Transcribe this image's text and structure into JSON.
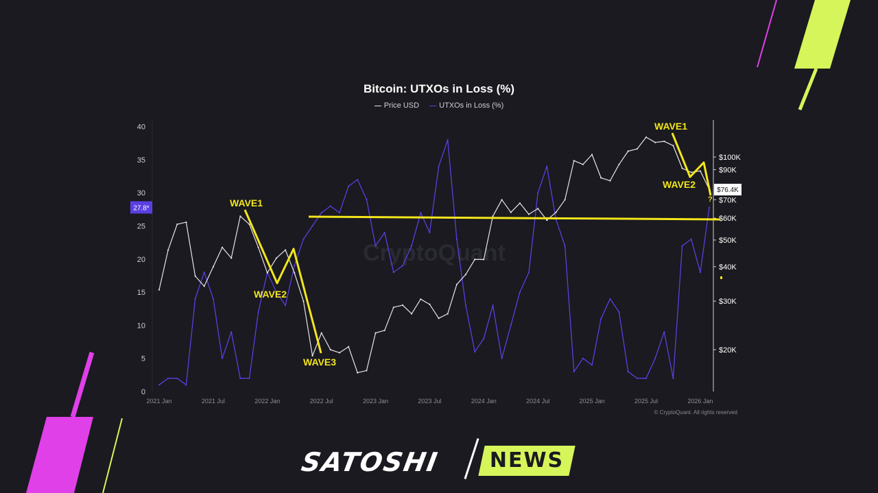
{
  "chart_data": {
    "type": "line",
    "title": "Bitcoin: UTXOs in Loss (%)",
    "legend": [
      "Price USD",
      "UTXOs in Loss (%)"
    ],
    "legend_placement": "top-center",
    "x_ticks": [
      "2021 Jan",
      "2021 Jul",
      "2022 Jan",
      "2022 Jul",
      "2023 Jan",
      "2023 Jul",
      "2024 Jan",
      "2024 Jul",
      "2025 Jan",
      "2025 Jul",
      "2026 Jan"
    ],
    "left_axis": {
      "ticks": [
        0,
        5,
        10,
        15,
        20,
        25,
        30,
        35,
        40
      ],
      "ylim": [
        0,
        41
      ]
    },
    "right_axis": {
      "scale": "log",
      "ticks": [
        "$20K",
        "$30K",
        "$40K",
        "$50K",
        "$60K",
        "$70K",
        "$90K",
        "$100K"
      ],
      "tick_values": [
        20000,
        30000,
        40000,
        50000,
        60000,
        70000,
        90000,
        100000
      ]
    },
    "current_loss_label": "27.8*",
    "current_price_label": "$76.4K",
    "watermark": "CryptoQuant",
    "copyright": "© CryptoQuant. All rights reserved",
    "colors": {
      "price": "#e6e6ea",
      "loss": "#5b3fe0",
      "annotation": "#f4e61b",
      "background": "#1a1a20"
    },
    "series": [
      {
        "name": "Price USD",
        "axis": "right",
        "x": [
          "2021-01",
          "2021-02",
          "2021-03",
          "2021-04",
          "2021-05",
          "2021-06",
          "2021-07",
          "2021-08",
          "2021-09",
          "2021-10",
          "2021-11",
          "2021-12",
          "2022-01",
          "2022-02",
          "2022-03",
          "2022-04",
          "2022-05",
          "2022-06",
          "2022-07",
          "2022-08",
          "2022-09",
          "2022-10",
          "2022-11",
          "2022-12",
          "2023-01",
          "2023-02",
          "2023-03",
          "2023-04",
          "2023-05",
          "2023-06",
          "2023-07",
          "2023-08",
          "2023-09",
          "2023-10",
          "2023-11",
          "2023-12",
          "2024-01",
          "2024-02",
          "2024-03",
          "2024-04",
          "2024-05",
          "2024-06",
          "2024-07",
          "2024-08",
          "2024-09",
          "2024-10",
          "2024-11",
          "2024-12",
          "2025-01",
          "2025-02",
          "2025-03",
          "2025-04",
          "2025-05",
          "2025-06",
          "2025-07",
          "2025-08",
          "2025-09",
          "2025-10",
          "2025-11",
          "2025-12",
          "2026-01",
          "2026-02"
        ],
        "values": [
          33000,
          46000,
          57000,
          58000,
          37000,
          34000,
          40000,
          47000,
          43000,
          61000,
          57000,
          47000,
          38000,
          43000,
          46000,
          38000,
          30000,
          19000,
          23000,
          20000,
          19500,
          20500,
          16500,
          16800,
          23000,
          23500,
          28500,
          29000,
          27000,
          30500,
          29200,
          26000,
          27000,
          34500,
          37500,
          42500,
          42500,
          61000,
          70000,
          63000,
          68000,
          62000,
          65000,
          59000,
          63000,
          70000,
          97000,
          94000,
          102000,
          84000,
          82000,
          94000,
          105000,
          107000,
          118000,
          113000,
          114000,
          110000,
          91000,
          88000,
          89000,
          76400
        ]
      },
      {
        "name": "UTXOs in Loss (%)",
        "axis": "left",
        "x": [
          "2021-01",
          "2021-02",
          "2021-03",
          "2021-04",
          "2021-05",
          "2021-06",
          "2021-07",
          "2021-08",
          "2021-09",
          "2021-10",
          "2021-11",
          "2021-12",
          "2022-01",
          "2022-02",
          "2022-03",
          "2022-04",
          "2022-05",
          "2022-06",
          "2022-07",
          "2022-08",
          "2022-09",
          "2022-10",
          "2022-11",
          "2022-12",
          "2023-01",
          "2023-02",
          "2023-03",
          "2023-04",
          "2023-05",
          "2023-06",
          "2023-07",
          "2023-08",
          "2023-09",
          "2023-10",
          "2023-11",
          "2023-12",
          "2024-01",
          "2024-02",
          "2024-03",
          "2024-04",
          "2024-05",
          "2024-06",
          "2024-07",
          "2024-08",
          "2024-09",
          "2024-10",
          "2024-11",
          "2024-12",
          "2025-01",
          "2025-02",
          "2025-03",
          "2025-04",
          "2025-05",
          "2025-06",
          "2025-07",
          "2025-08",
          "2025-09",
          "2025-10",
          "2025-11",
          "2025-12",
          "2026-01",
          "2026-02"
        ],
        "values": [
          1,
          2,
          2,
          1,
          14,
          18,
          14,
          5,
          9,
          2,
          2,
          12,
          18,
          15,
          13,
          19,
          23,
          25,
          27,
          28,
          27,
          31,
          32,
          29,
          22,
          24,
          18,
          19,
          22,
          27,
          24,
          34,
          38,
          23,
          13,
          6,
          8,
          13,
          5,
          10,
          15,
          18,
          30,
          34,
          26,
          22,
          3,
          5,
          4,
          11,
          14,
          12,
          3,
          2,
          2,
          5,
          9,
          2,
          22,
          23,
          18,
          27.8
        ]
      }
    ],
    "annotations": {
      "horizontal_level": "$60K",
      "labels": [
        "WAVE1",
        "WAVE2",
        "WAVE3",
        "WAVE1",
        "WAVE2",
        "?"
      ]
    }
  }
}
